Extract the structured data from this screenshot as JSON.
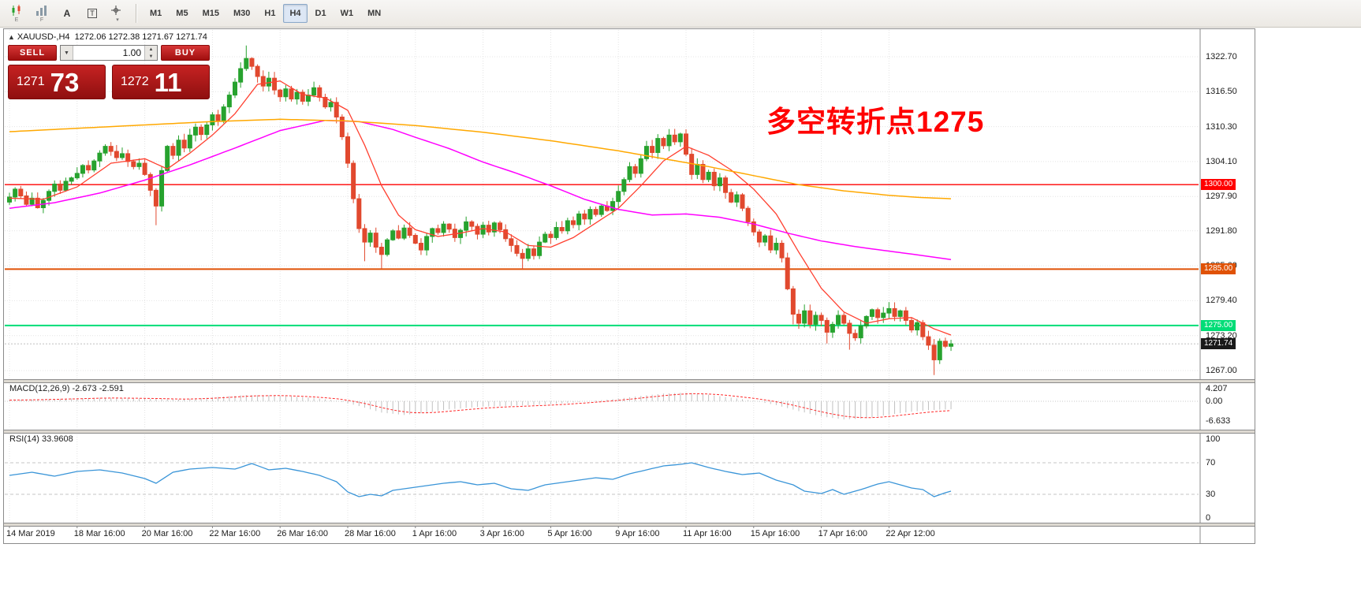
{
  "toolbar": {
    "icons": [
      "candlestick-chart",
      "bar-chart",
      "text-label",
      "text-box",
      "crosshair"
    ],
    "sub_labels": [
      "E",
      "F"
    ],
    "text_a": "A",
    "text_t": "T",
    "caret": "▾",
    "timeframes": [
      {
        "label": "M1",
        "active": false
      },
      {
        "label": "M5",
        "active": false
      },
      {
        "label": "M15",
        "active": false
      },
      {
        "label": "M30",
        "active": false
      },
      {
        "label": "H1",
        "active": false
      },
      {
        "label": "H4",
        "active": true
      },
      {
        "label": "D1",
        "active": false
      },
      {
        "label": "W1",
        "active": false
      },
      {
        "label": "MN",
        "active": false
      }
    ]
  },
  "chart_header": {
    "direction": "▲",
    "symbol": "XAUUSD-,H4",
    "ohlc": "1272.06 1272.38 1271.67 1271.74"
  },
  "trade_panel": {
    "sell_label": "SELL",
    "buy_label": "BUY",
    "volume": "1.00",
    "bid_main": "1271",
    "bid_big": "73",
    "ask_main": "1272",
    "ask_big": "11"
  },
  "annotation": {
    "text": "多空转折点1275",
    "color": "#ff0000"
  },
  "panes": {
    "macd_label": "MACD(12,26,9) -2.673 -2.591",
    "rsi_label": "RSI(14) 33.9608"
  },
  "chart_data": {
    "type": "candlestick",
    "symbol": "XAUUSD-",
    "timeframe": "H4",
    "title": "XAUUSD-,H4",
    "ohlc_readout": {
      "open": "1272.06",
      "high": "1272.38",
      "low": "1271.67",
      "close": "1271.74"
    },
    "up_color": "#27a22e",
    "down_color": "#e1492e",
    "y_ticks": [
      1322.7,
      1316.5,
      1310.3,
      1304.1,
      1297.9,
      1291.8,
      1285.6,
      1279.4,
      1273.2,
      1267.0
    ],
    "x_labels": [
      [
        "14 Mar 2019",
        0
      ],
      [
        "18 Mar 16:00",
        12
      ],
      [
        "20 Mar 16:00",
        24
      ],
      [
        "22 Mar 16:00",
        36
      ],
      [
        "26 Mar 16:00",
        48
      ],
      [
        "28 Mar 16:00",
        60
      ],
      [
        "1 Apr 16:00",
        72
      ],
      [
        "3 Apr 16:00",
        84
      ],
      [
        "5 Apr 16:00",
        96
      ],
      [
        "9 Apr 16:00",
        108
      ],
      [
        "11 Apr 16:00",
        120
      ],
      [
        "15 Apr 16:00",
        132
      ],
      [
        "17 Apr 16:00",
        144
      ],
      [
        "22 Apr 12:00",
        156
      ]
    ],
    "first_open": 1296.9,
    "closes": [
      1297.8,
      1299.2,
      1298.0,
      1296.5,
      1297.6,
      1295.9,
      1297.2,
      1298.8,
      1300.1,
      1299.0,
      1300.6,
      1301.2,
      1302.0,
      1303.4,
      1302.6,
      1304.2,
      1305.6,
      1306.8,
      1305.9,
      1304.8,
      1305.5,
      1304.1,
      1303.2,
      1303.8,
      1301.8,
      1299.0,
      1296.2,
      1302.5,
      1306.8,
      1305.2,
      1307.9,
      1306.5,
      1308.8,
      1310.2,
      1308.9,
      1310.6,
      1312.4,
      1311.2,
      1313.8,
      1315.9,
      1318.2,
      1320.6,
      1322.4,
      1321.0,
      1319.2,
      1317.5,
      1318.9,
      1316.8,
      1315.6,
      1317.0,
      1315.2,
      1316.4,
      1314.8,
      1315.9,
      1317.2,
      1315.5,
      1313.8,
      1314.6,
      1312.0,
      1308.5,
      1303.8,
      1297.5,
      1292.2,
      1289.8,
      1291.4,
      1288.9,
      1287.6,
      1290.2,
      1291.8,
      1290.5,
      1292.3,
      1291.0,
      1289.6,
      1288.4,
      1290.8,
      1292.2,
      1291.5,
      1293.0,
      1292.1,
      1290.6,
      1291.9,
      1293.4,
      1292.6,
      1291.2,
      1292.8,
      1291.6,
      1293.2,
      1292.0,
      1290.4,
      1289.2,
      1287.8,
      1286.9,
      1288.6,
      1287.4,
      1289.8,
      1291.2,
      1290.6,
      1292.4,
      1291.8,
      1293.6,
      1292.9,
      1294.8,
      1293.9,
      1295.6,
      1294.7,
      1296.2,
      1295.4,
      1297.0,
      1298.8,
      1300.9,
      1303.2,
      1302.0,
      1304.6,
      1306.8,
      1305.7,
      1308.2,
      1306.9,
      1308.8,
      1307.6,
      1309.0,
      1305.4,
      1301.8,
      1303.6,
      1300.9,
      1302.2,
      1299.8,
      1301.2,
      1298.6,
      1296.9,
      1298.2,
      1295.8,
      1293.4,
      1291.6,
      1289.8,
      1290.9,
      1288.4,
      1289.6,
      1287.0,
      1281.5,
      1277.0,
      1275.4,
      1277.6,
      1275.2,
      1276.8,
      1275.9,
      1273.8,
      1275.2,
      1276.8,
      1275.4,
      1273.6,
      1272.8,
      1274.9,
      1276.6,
      1277.8,
      1276.4,
      1277.2,
      1278.0,
      1276.6,
      1277.6,
      1275.9,
      1274.2,
      1275.5,
      1273.0,
      1271.5,
      1268.9,
      1272.2,
      1271.3,
      1271.74
    ],
    "wick_overrides": {
      "26": [
        null,
        1292.8
      ],
      "42": [
        1324.7,
        null
      ],
      "63": [
        null,
        1286.4
      ],
      "66": [
        null,
        1285.1
      ],
      "91": [
        null,
        1284.9
      ],
      "139": [
        null,
        1275.2
      ],
      "145": [
        null,
        1271.8
      ],
      "149": [
        null,
        1270.7
      ],
      "164": [
        null,
        1266.2
      ]
    },
    "levels": [
      {
        "price": 1300.0,
        "label": "1300.00",
        "color": "#ff0000",
        "width": 1.4
      },
      {
        "price": 1285.0,
        "label": "1285.00",
        "color": "#e05206",
        "width": 2
      },
      {
        "price": 1275.0,
        "label": "1275.00",
        "color": "#00dd77",
        "width": 2
      }
    ],
    "current": {
      "price": 1271.74,
      "label": "1271.74",
      "color": "#1a1a1a"
    },
    "ma_lines": [
      {
        "name": "ma-fast",
        "color": "#ff4030",
        "width": 1.3,
        "anchors": [
          [
            0,
            1297.6
          ],
          [
            6,
            1297.4
          ],
          [
            12,
            1299.6
          ],
          [
            18,
            1303.8
          ],
          [
            24,
            1304.6
          ],
          [
            28,
            1302.8
          ],
          [
            32,
            1305.6
          ],
          [
            36,
            1308.8
          ],
          [
            40,
            1312.6
          ],
          [
            44,
            1317.8
          ],
          [
            48,
            1318.4
          ],
          [
            52,
            1316.0
          ],
          [
            56,
            1315.4
          ],
          [
            60,
            1313.2
          ],
          [
            63,
            1307.0
          ],
          [
            66,
            1299.8
          ],
          [
            69,
            1294.6
          ],
          [
            72,
            1292.0
          ],
          [
            76,
            1290.8
          ],
          [
            80,
            1291.4
          ],
          [
            84,
            1292.2
          ],
          [
            88,
            1291.6
          ],
          [
            92,
            1289.2
          ],
          [
            96,
            1288.9
          ],
          [
            100,
            1290.6
          ],
          [
            104,
            1293.2
          ],
          [
            108,
            1295.8
          ],
          [
            112,
            1299.8
          ],
          [
            116,
            1304.2
          ],
          [
            120,
            1306.8
          ],
          [
            124,
            1305.2
          ],
          [
            128,
            1302.6
          ],
          [
            132,
            1299.2
          ],
          [
            136,
            1294.8
          ],
          [
            140,
            1288.0
          ],
          [
            144,
            1281.6
          ],
          [
            148,
            1277.4
          ],
          [
            152,
            1275.4
          ],
          [
            156,
            1276.2
          ],
          [
            160,
            1276.4
          ],
          [
            164,
            1274.4
          ],
          [
            167,
            1273.3
          ]
        ]
      },
      {
        "name": "ma-mid",
        "color": "#ff00ff",
        "width": 1.5,
        "anchors": [
          [
            0,
            1295.8
          ],
          [
            8,
            1296.8
          ],
          [
            16,
            1298.5
          ],
          [
            24,
            1300.8
          ],
          [
            32,
            1303.5
          ],
          [
            40,
            1306.5
          ],
          [
            48,
            1309.6
          ],
          [
            56,
            1311.4
          ],
          [
            62,
            1311.2
          ],
          [
            68,
            1309.8
          ],
          [
            72,
            1308.4
          ],
          [
            78,
            1306.4
          ],
          [
            84,
            1304.0
          ],
          [
            90,
            1302.0
          ],
          [
            96,
            1299.8
          ],
          [
            102,
            1297.4
          ],
          [
            108,
            1295.6
          ],
          [
            114,
            1294.6
          ],
          [
            120,
            1294.8
          ],
          [
            126,
            1294.2
          ],
          [
            132,
            1293.0
          ],
          [
            138,
            1291.4
          ],
          [
            144,
            1290.0
          ],
          [
            150,
            1289.0
          ],
          [
            156,
            1288.2
          ],
          [
            162,
            1287.4
          ],
          [
            167,
            1286.7
          ]
        ]
      },
      {
        "name": "ma-slow",
        "color": "#ffa800",
        "width": 1.5,
        "anchors": [
          [
            0,
            1309.4
          ],
          [
            12,
            1310.0
          ],
          [
            24,
            1310.6
          ],
          [
            36,
            1311.2
          ],
          [
            48,
            1311.6
          ],
          [
            60,
            1311.3
          ],
          [
            72,
            1310.5
          ],
          [
            84,
            1309.3
          ],
          [
            96,
            1307.8
          ],
          [
            108,
            1306.0
          ],
          [
            116,
            1304.6
          ],
          [
            124,
            1303.2
          ],
          [
            132,
            1301.6
          ],
          [
            140,
            1300.0
          ],
          [
            148,
            1298.9
          ],
          [
            156,
            1298.1
          ],
          [
            162,
            1297.7
          ],
          [
            167,
            1297.5
          ]
        ]
      }
    ],
    "macd": {
      "display": "MACD(12,26,9) -2.673 -2.591",
      "values": [
        -2.673,
        -2.591
      ],
      "hist_color": "#c0c0c0",
      "signal_color": "#ff2a2a",
      "y_ticks": [
        {
          "v": 4.207,
          "label": "4.207"
        },
        {
          "v": 0,
          "label": "0.00"
        },
        {
          "v": -6.633,
          "label": "-6.633"
        }
      ],
      "anchors": [
        [
          0,
          0.4
        ],
        [
          8,
          0.8
        ],
        [
          16,
          1.2
        ],
        [
          24,
          0.9
        ],
        [
          30,
          0.6
        ],
        [
          36,
          1.3
        ],
        [
          42,
          2.1
        ],
        [
          48,
          1.9
        ],
        [
          54,
          1.1
        ],
        [
          58,
          0.2
        ],
        [
          62,
          -1.6
        ],
        [
          66,
          -3.8
        ],
        [
          70,
          -4.6
        ],
        [
          74,
          -3.8
        ],
        [
          78,
          -2.7
        ],
        [
          84,
          -1.8
        ],
        [
          90,
          -1.5
        ],
        [
          96,
          -1.0
        ],
        [
          100,
          -0.4
        ],
        [
          104,
          0.2
        ],
        [
          108,
          0.9
        ],
        [
          112,
          1.8
        ],
        [
          116,
          2.6
        ],
        [
          120,
          2.9
        ],
        [
          124,
          2.2
        ],
        [
          128,
          1.2
        ],
        [
          132,
          0.2
        ],
        [
          136,
          -1.3
        ],
        [
          140,
          -3.3
        ],
        [
          144,
          -5.1
        ],
        [
          148,
          -6.1
        ],
        [
          152,
          -5.7
        ],
        [
          156,
          -4.5
        ],
        [
          160,
          -3.5
        ],
        [
          163,
          -3.0
        ],
        [
          167,
          -2.673
        ]
      ]
    },
    "rsi": {
      "display": "RSI(14) 33.9608",
      "value": 33.9608,
      "line_color": "#3a95d8",
      "levels": [
        70,
        30
      ],
      "y_ticks": [
        {
          "v": 100,
          "label": "100"
        },
        {
          "v": 70,
          "label": "70"
        },
        {
          "v": 30,
          "label": "30"
        },
        {
          "v": 0,
          "label": "0"
        }
      ],
      "anchors": [
        [
          0,
          54
        ],
        [
          4,
          58
        ],
        [
          8,
          53
        ],
        [
          12,
          59
        ],
        [
          16,
          61
        ],
        [
          20,
          57
        ],
        [
          24,
          50
        ],
        [
          26,
          44
        ],
        [
          29,
          58
        ],
        [
          32,
          62
        ],
        [
          36,
          64
        ],
        [
          40,
          62
        ],
        [
          43,
          69
        ],
        [
          46,
          61
        ],
        [
          49,
          63
        ],
        [
          52,
          59
        ],
        [
          55,
          54
        ],
        [
          58,
          46
        ],
        [
          60,
          33
        ],
        [
          62,
          27
        ],
        [
          64,
          30
        ],
        [
          66,
          28
        ],
        [
          68,
          35
        ],
        [
          71,
          38
        ],
        [
          74,
          41
        ],
        [
          77,
          44
        ],
        [
          80,
          46
        ],
        [
          83,
          42
        ],
        [
          86,
          44
        ],
        [
          89,
          37
        ],
        [
          92,
          35
        ],
        [
          95,
          42
        ],
        [
          98,
          45
        ],
        [
          101,
          48
        ],
        [
          104,
          51
        ],
        [
          107,
          49
        ],
        [
          110,
          56
        ],
        [
          113,
          61
        ],
        [
          116,
          66
        ],
        [
          119,
          68
        ],
        [
          121,
          70
        ],
        [
          124,
          64
        ],
        [
          127,
          59
        ],
        [
          130,
          55
        ],
        [
          133,
          57
        ],
        [
          136,
          48
        ],
        [
          139,
          42
        ],
        [
          141,
          34
        ],
        [
          144,
          31
        ],
        [
          146,
          36
        ],
        [
          148,
          30
        ],
        [
          151,
          36
        ],
        [
          154,
          43
        ],
        [
          156,
          46
        ],
        [
          158,
          42
        ],
        [
          160,
          38
        ],
        [
          162,
          36
        ],
        [
          164,
          27
        ],
        [
          166,
          32
        ],
        [
          167,
          33.96
        ]
      ]
    }
  }
}
